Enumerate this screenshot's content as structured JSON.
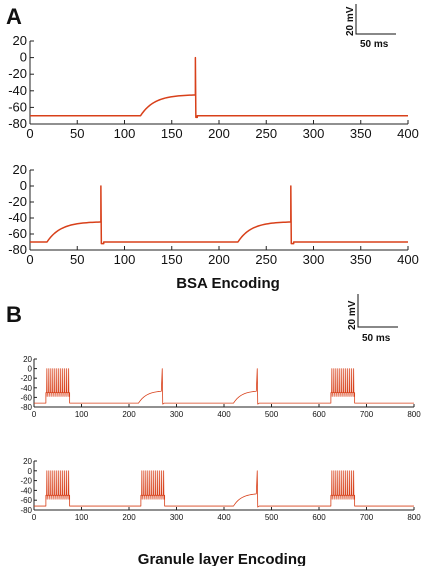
{
  "figure": {
    "panel_a_label": "A",
    "panel_b_label": "B",
    "caption_a": "BSA  Encoding",
    "caption_b": "Granule layer Encoding",
    "scale_a": {
      "voltage": "20 mV",
      "time": "50 ms"
    },
    "scale_b": {
      "voltage": "20 mV",
      "time": "50 ms"
    }
  },
  "colors": {
    "trace": "#d8401a",
    "axis": "#222222"
  },
  "chart_data": [
    {
      "type": "line",
      "panel": "A",
      "xlim": [
        0,
        400
      ],
      "ylim": [
        -80,
        20
      ],
      "xticks": [
        0,
        50,
        100,
        150,
        200,
        250,
        300,
        350,
        400
      ],
      "yticks": [
        20,
        0,
        -20,
        -40,
        -60,
        -80
      ],
      "rest": -70,
      "reset": -75,
      "spike_peak": 0,
      "threshold": -45,
      "spikes": [
        {
          "ramp_start": 117,
          "spike_time": 175,
          "plateau_end": 177
        }
      ],
      "series": [
        {
          "values_description_free": true
        }
      ]
    },
    {
      "type": "line",
      "panel": "A",
      "xlim": [
        0,
        400
      ],
      "ylim": [
        -80,
        20
      ],
      "xticks": [
        0,
        50,
        100,
        150,
        200,
        250,
        300,
        350,
        400
      ],
      "yticks": [
        20,
        0,
        -20,
        -40,
        -60,
        -80
      ],
      "rest": -70,
      "reset": -75,
      "spike_peak": 0,
      "threshold": -45,
      "spikes": [
        {
          "ramp_start": 18,
          "spike_time": 75,
          "plateau_end": 78
        },
        {
          "ramp_start": 220,
          "spike_time": 276,
          "plateau_end": 279
        }
      ]
    },
    {
      "type": "line",
      "panel": "B",
      "xlim": [
        0,
        800
      ],
      "ylim": [
        -80,
        20
      ],
      "xticks": [
        0,
        100,
        200,
        300,
        400,
        500,
        600,
        700,
        800
      ],
      "yticks": [
        20,
        0,
        -20,
        -40,
        -60,
        -80
      ],
      "rest": -72,
      "hyper": -74,
      "burst_base": -50,
      "spike_peak": 0,
      "bursts": [
        [
          25,
          75
        ],
        [
          625,
          675
        ]
      ],
      "single_spikes": [
        {
          "ramp_start": 220,
          "spike_time": 270
        },
        {
          "ramp_start": 420,
          "spike_time": 470
        }
      ]
    },
    {
      "type": "line",
      "panel": "B",
      "xlim": [
        0,
        800
      ],
      "ylim": [
        -80,
        20
      ],
      "xticks": [
        0,
        100,
        200,
        300,
        400,
        500,
        600,
        700,
        800
      ],
      "yticks": [
        20,
        0,
        -20,
        -40,
        -60,
        -80
      ],
      "rest": -72,
      "hyper": -74,
      "burst_base": -50,
      "spike_peak": 0,
      "bursts": [
        [
          25,
          75
        ],
        [
          225,
          275
        ],
        [
          625,
          675
        ]
      ],
      "single_spikes": [
        {
          "ramp_start": 420,
          "spike_time": 470
        }
      ]
    }
  ]
}
